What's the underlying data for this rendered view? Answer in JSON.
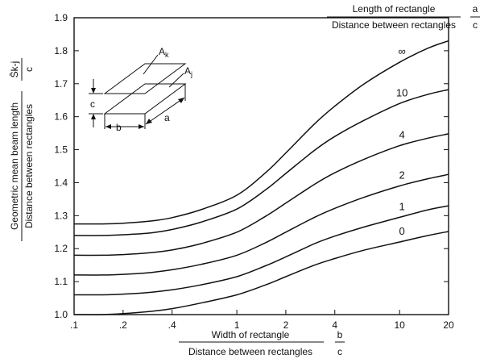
{
  "chart_data": {
    "type": "line",
    "xscale": "log",
    "xlim": [
      0.1,
      20
    ],
    "ylim": [
      1.0,
      1.9
    ],
    "x_tick_labels": [
      ".1",
      ".2",
      ".4",
      "1",
      "2",
      "4",
      "10",
      "20"
    ],
    "x_tick_values": [
      0.1,
      0.2,
      0.4,
      1,
      2,
      4,
      10,
      20
    ],
    "y_tick_labels": [
      "1.0",
      "1.1",
      "1.2",
      "1.3",
      "1.4",
      "1.5",
      "1.6",
      "1.7",
      "1.8",
      "1.9"
    ],
    "y_tick_values": [
      1.0,
      1.1,
      1.2,
      1.3,
      1.4,
      1.5,
      1.6,
      1.7,
      1.8,
      1.9
    ],
    "xlabel_top": "Width of rectangle",
    "xlabel_bottom": "Distance between rectangles",
    "xlabel_frac_num": "b",
    "xlabel_frac_den": "c",
    "ylabel_top": "Geometric mean beam length",
    "ylabel_bottom": "Distance between rectangles",
    "ylabel_frac_num": "S̄k-j",
    "ylabel_frac_den": "c",
    "legend_title_top": "Length of rectangle",
    "legend_title_bottom": "Distance between rectangles",
    "legend_frac_num": "a",
    "legend_frac_den": "c",
    "x": [
      0.1,
      0.15,
      0.2,
      0.3,
      0.4,
      0.6,
      1,
      1.5,
      2,
      3,
      4,
      6,
      10,
      15,
      20
    ],
    "series": [
      {
        "name": "0",
        "values": [
          1.0,
          1.0,
          1.003,
          1.01,
          1.018,
          1.035,
          1.06,
          1.09,
          1.115,
          1.15,
          1.17,
          1.195,
          1.22,
          1.24,
          1.252
        ]
      },
      {
        "name": "1",
        "values": [
          1.06,
          1.06,
          1.062,
          1.068,
          1.075,
          1.09,
          1.115,
          1.148,
          1.175,
          1.215,
          1.238,
          1.265,
          1.295,
          1.318,
          1.33
        ]
      },
      {
        "name": "2",
        "values": [
          1.12,
          1.12,
          1.122,
          1.128,
          1.136,
          1.152,
          1.18,
          1.218,
          1.25,
          1.295,
          1.322,
          1.355,
          1.39,
          1.412,
          1.425
        ]
      },
      {
        "name": "4",
        "values": [
          1.18,
          1.18,
          1.182,
          1.188,
          1.196,
          1.215,
          1.25,
          1.298,
          1.338,
          1.395,
          1.43,
          1.47,
          1.512,
          1.535,
          1.548
        ]
      },
      {
        "name": "10",
        "values": [
          1.24,
          1.24,
          1.242,
          1.248,
          1.258,
          1.28,
          1.32,
          1.378,
          1.428,
          1.498,
          1.54,
          1.588,
          1.64,
          1.668,
          1.682
        ]
      },
      {
        "name": "∞",
        "values": [
          1.275,
          1.275,
          1.277,
          1.284,
          1.294,
          1.318,
          1.362,
          1.43,
          1.49,
          1.578,
          1.632,
          1.698,
          1.765,
          1.808,
          1.83
        ]
      }
    ],
    "inset_labels": {
      "ak": "A",
      "ak_sub": "k",
      "aj": "A",
      "aj_sub": "j",
      "a": "a",
      "b": "b",
      "c": "c"
    }
  }
}
